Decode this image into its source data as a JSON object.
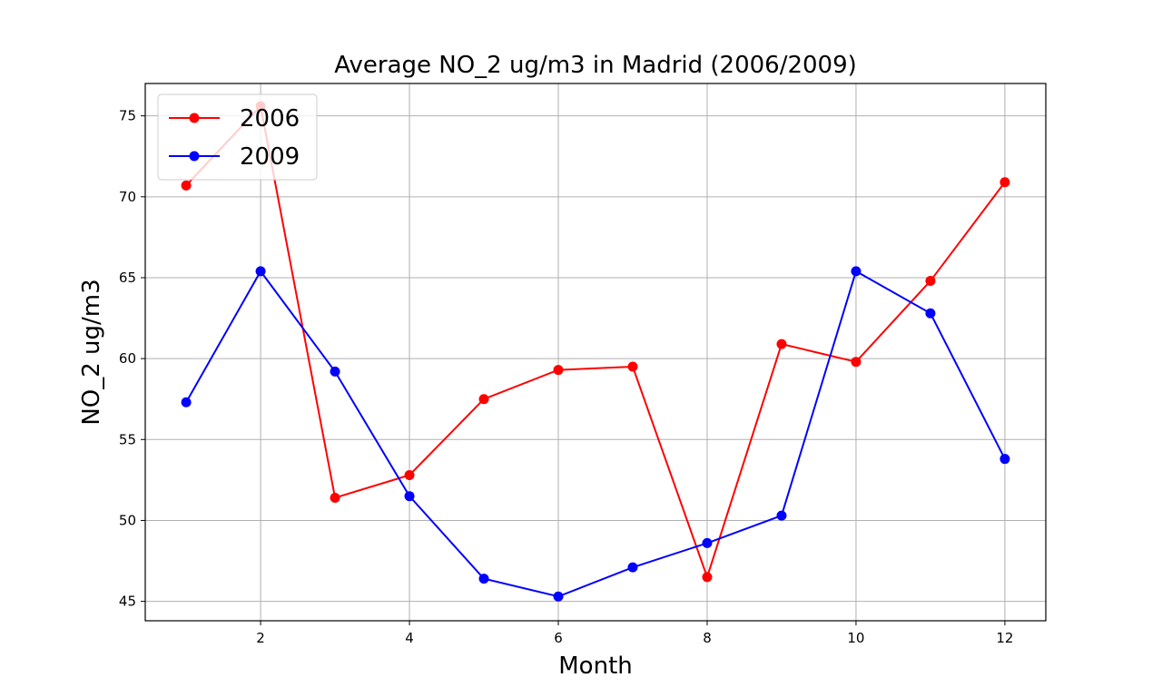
{
  "chart_data": {
    "type": "line",
    "title": "Average NO_2 ug/m3 in Madrid (2006/2009)",
    "xlabel": "Month",
    "ylabel": "NO_2 ug/m3",
    "x": [
      1,
      2,
      3,
      4,
      5,
      6,
      7,
      8,
      9,
      10,
      11,
      12
    ],
    "xlim": [
      0.45,
      12.55
    ],
    "ylim": [
      43.8,
      77.0
    ],
    "xticks": [
      2,
      4,
      6,
      8,
      10,
      12
    ],
    "yticks": [
      45,
      50,
      55,
      60,
      65,
      70,
      75
    ],
    "grid": true,
    "legend_position": "top-left",
    "series": [
      {
        "name": "2006",
        "color": "#ff0000",
        "values": [
          70.7,
          75.6,
          51.4,
          52.8,
          57.5,
          59.3,
          59.5,
          46.5,
          60.9,
          59.8,
          64.8,
          70.9
        ]
      },
      {
        "name": "2009",
        "color": "#0000ff",
        "values": [
          57.3,
          65.4,
          59.2,
          51.5,
          46.4,
          45.3,
          47.1,
          48.6,
          50.3,
          65.4,
          62.8,
          53.8
        ]
      }
    ]
  }
}
